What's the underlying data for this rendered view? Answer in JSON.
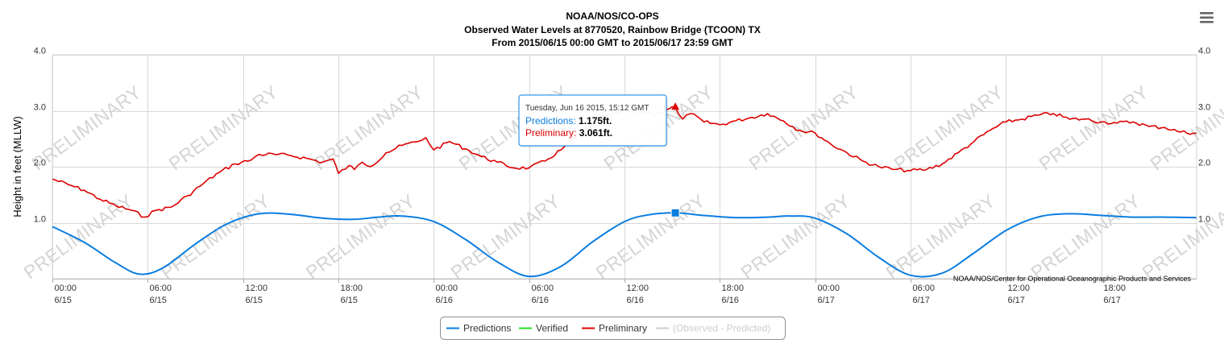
{
  "chart_data": {
    "type": "line",
    "title": "NOAA/NOS/CO-OPS",
    "subtitle_lines": [
      "Observed Water Levels at 8770520, Rainbow Bridge (TCOON) TX",
      "From 2015/06/15 00:00 GMT to 2015/06/17 23:59 GMT"
    ],
    "ylabel": "Height in feet (MLLW)",
    "ylim": [
      0,
      4
    ],
    "y_ticks": [
      "1.0",
      "2.0",
      "3.0",
      "4.0"
    ],
    "y_tick_values": [
      1,
      2,
      3,
      4
    ],
    "x_range": [
      "2015-06-15 00:00",
      "2015-06-17 23:59"
    ],
    "x_ticks": [
      {
        "time": "2015-06-15 00:00",
        "line1": "00:00",
        "line2": "6/15"
      },
      {
        "time": "2015-06-15 06:00",
        "line1": "06:00",
        "line2": "6/15"
      },
      {
        "time": "2015-06-15 12:00",
        "line1": "12:00",
        "line2": "6/15"
      },
      {
        "time": "2015-06-15 18:00",
        "line1": "18:00",
        "line2": "6/15"
      },
      {
        "time": "2015-06-16 00:00",
        "line1": "00:00",
        "line2": "6/16"
      },
      {
        "time": "2015-06-16 06:00",
        "line1": "06:00",
        "line2": "6/16"
      },
      {
        "time": "2015-06-16 12:00",
        "line1": "12:00",
        "line2": "6/16"
      },
      {
        "time": "2015-06-16 18:00",
        "line1": "18:00",
        "line2": "6/16"
      },
      {
        "time": "2015-06-17 00:00",
        "line1": "00:00",
        "line2": "6/17"
      },
      {
        "time": "2015-06-17 06:00",
        "line1": "06:00",
        "line2": "6/17"
      },
      {
        "time": "2015-06-17 12:00",
        "line1": "12:00",
        "line2": "6/17"
      },
      {
        "time": "2015-06-17 18:00",
        "line1": "18:00",
        "line2": "6/17"
      }
    ],
    "grid": true,
    "watermark": "PRELIMINARY",
    "credit": "NOAA/NOS/Center for Operational Oceanographic Products and Services",
    "legend": {
      "placement": "bottom-center",
      "items": [
        {
          "name": "Predictions",
          "color": "#0a7de0",
          "enabled": true
        },
        {
          "name": "Verified",
          "color": "#22dd22",
          "enabled": true
        },
        {
          "name": "Preliminary",
          "color": "#dd0000",
          "enabled": true
        },
        {
          "name": "(Observed - Predicted)",
          "color": "#cccccc",
          "enabled": false
        }
      ]
    },
    "tooltip": {
      "date": "Tuesday, Jun 16 2015, 15:12 GMT",
      "time": "2015-06-16 15:12",
      "rows": [
        {
          "name": "Predictions",
          "value": "1.175ft.",
          "y": 1.175,
          "color": "#0a7de0"
        },
        {
          "name": "Preliminary",
          "value": "3.061ft.",
          "y": 3.061,
          "color": "#dd0000"
        }
      ]
    },
    "series": [
      {
        "name": "Predictions",
        "color": "#0a7de0",
        "x": [
          "2015-06-15 00:00",
          "2015-06-15 02:00",
          "2015-06-15 04:00",
          "2015-06-15 05:30",
          "2015-06-15 07:00",
          "2015-06-15 09:00",
          "2015-06-15 11:00",
          "2015-06-15 13:00",
          "2015-06-15 15:00",
          "2015-06-15 17:00",
          "2015-06-15 19:00",
          "2015-06-15 20:30",
          "2015-06-15 22:00",
          "2015-06-16 00:00",
          "2015-06-16 02:00",
          "2015-06-16 04:00",
          "2015-06-16 06:00",
          "2015-06-16 08:00",
          "2015-06-16 10:00",
          "2015-06-16 12:00",
          "2015-06-16 13:30",
          "2015-06-16 15:12",
          "2015-06-16 17:00",
          "2015-06-16 19:00",
          "2015-06-16 21:00",
          "2015-06-16 22:30",
          "2015-06-17 00:00",
          "2015-06-17 02:00",
          "2015-06-17 04:00",
          "2015-06-17 06:00",
          "2015-06-17 08:00",
          "2015-06-17 10:00",
          "2015-06-17 12:00",
          "2015-06-17 14:00",
          "2015-06-17 16:00",
          "2015-06-17 18:00",
          "2015-06-17 20:00",
          "2015-06-17 22:00",
          "2015-06-17 23:59"
        ],
        "y": [
          0.93,
          0.65,
          0.28,
          0.08,
          0.2,
          0.62,
          0.98,
          1.16,
          1.15,
          1.08,
          1.06,
          1.1,
          1.12,
          1.02,
          0.7,
          0.3,
          0.04,
          0.22,
          0.66,
          1.02,
          1.14,
          1.175,
          1.13,
          1.09,
          1.1,
          1.12,
          1.08,
          0.8,
          0.38,
          0.06,
          0.1,
          0.46,
          0.86,
          1.1,
          1.16,
          1.13,
          1.1,
          1.1,
          1.09
        ]
      },
      {
        "name": "Verified",
        "color": "#22dd22",
        "x": [],
        "y": []
      },
      {
        "name": "Preliminary",
        "color": "#dd0000",
        "x": [
          "2015-06-15 00:00",
          "2015-06-15 01:00",
          "2015-06-15 02:00",
          "2015-06-15 03:00",
          "2015-06-15 04:00",
          "2015-06-15 05:00",
          "2015-06-15 05:48",
          "2015-06-15 06:30",
          "2015-06-15 07:30",
          "2015-06-15 08:30",
          "2015-06-15 09:30",
          "2015-06-15 10:30",
          "2015-06-15 11:30",
          "2015-06-15 12:30",
          "2015-06-15 13:00",
          "2015-06-15 14:00",
          "2015-06-15 15:00",
          "2015-06-15 16:00",
          "2015-06-15 17:00",
          "2015-06-15 17:40",
          "2015-06-15 18:00",
          "2015-06-15 18:40",
          "2015-06-15 19:00",
          "2015-06-15 19:30",
          "2015-06-15 20:00",
          "2015-06-15 21:00",
          "2015-06-15 22:00",
          "2015-06-15 23:00",
          "2015-06-15 23:30",
          "2015-06-16 00:00",
          "2015-06-16 01:00",
          "2015-06-16 02:00",
          "2015-06-16 03:00",
          "2015-06-16 04:00",
          "2015-06-16 05:00",
          "2015-06-16 06:00",
          "2015-06-16 07:00",
          "2015-06-16 08:00",
          "2015-06-16 09:00",
          "2015-06-16 10:00",
          "2015-06-16 11:00",
          "2015-06-16 12:00",
          "2015-06-16 13:00",
          "2015-06-16 14:00",
          "2015-06-16 15:12",
          "2015-06-16 15:40",
          "2015-06-16 16:10",
          "2015-06-16 17:00",
          "2015-06-16 18:00",
          "2015-06-16 19:00",
          "2015-06-16 20:00",
          "2015-06-16 21:00",
          "2015-06-16 22:00",
          "2015-06-16 23:00",
          "2015-06-17 00:00",
          "2015-06-17 01:00",
          "2015-06-17 02:00",
          "2015-06-17 03:00",
          "2015-06-17 04:00",
          "2015-06-17 05:00",
          "2015-06-17 06:00",
          "2015-06-17 07:00",
          "2015-06-17 08:00",
          "2015-06-17 09:00",
          "2015-06-17 10:00",
          "2015-06-17 11:00",
          "2015-06-17 12:00",
          "2015-06-17 13:00",
          "2015-06-17 14:00",
          "2015-06-17 15:00",
          "2015-06-17 16:00",
          "2015-06-17 17:00",
          "2015-06-17 18:00",
          "2015-06-17 19:00",
          "2015-06-17 20:00",
          "2015-06-17 21:00",
          "2015-06-17 22:00",
          "2015-06-17 23:00",
          "2015-06-17 23:59"
        ],
        "y": [
          1.78,
          1.68,
          1.58,
          1.42,
          1.3,
          1.22,
          1.1,
          1.22,
          1.28,
          1.48,
          1.7,
          1.9,
          2.05,
          2.12,
          2.22,
          2.22,
          2.2,
          2.15,
          2.08,
          2.14,
          1.88,
          2.02,
          1.95,
          2.08,
          2.0,
          2.25,
          2.38,
          2.45,
          2.52,
          2.3,
          2.45,
          2.32,
          2.18,
          2.08,
          1.98,
          1.98,
          2.1,
          2.3,
          2.55,
          2.75,
          2.92,
          2.98,
          2.98,
          2.95,
          3.061,
          2.85,
          2.95,
          2.8,
          2.75,
          2.82,
          2.88,
          2.95,
          2.82,
          2.65,
          2.6,
          2.4,
          2.25,
          2.1,
          2.0,
          1.95,
          1.93,
          1.95,
          2.05,
          2.25,
          2.45,
          2.65,
          2.8,
          2.85,
          2.92,
          2.95,
          2.85,
          2.85,
          2.8,
          2.78,
          2.8,
          2.72,
          2.7,
          2.62,
          2.6
        ]
      }
    ]
  }
}
